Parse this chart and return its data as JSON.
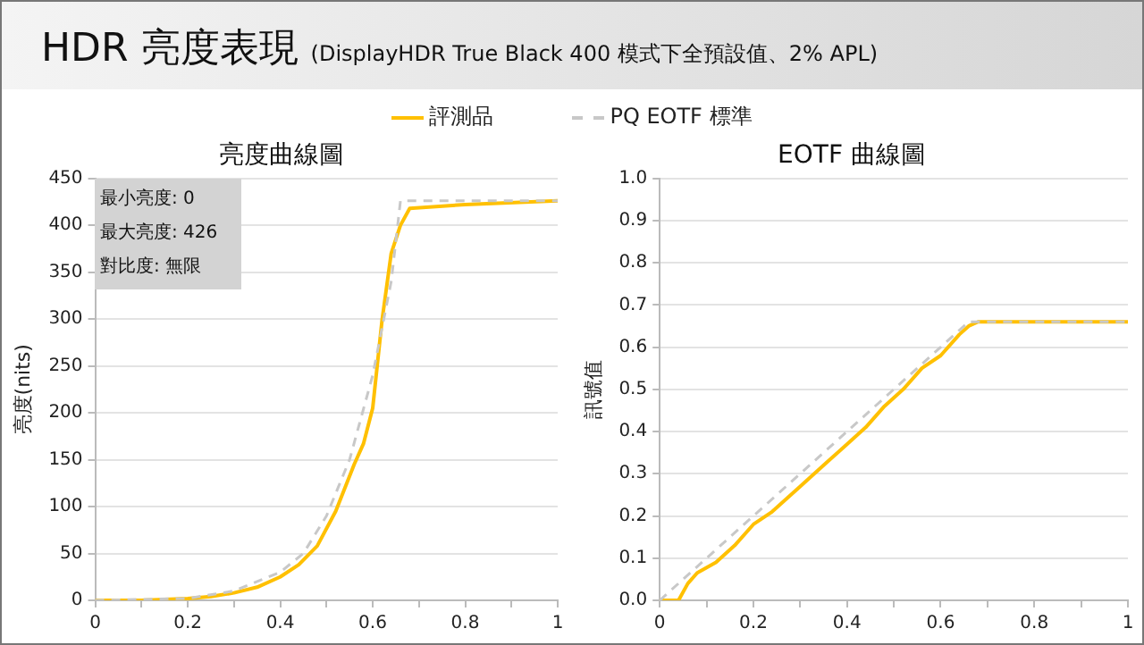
{
  "chart_data": [
    {
      "type": "line",
      "title": "亮度曲線圖",
      "ylabel": "亮度(nits)",
      "annotations": [
        "HDR 亮度表現",
        "(DisplayHDR True Black 400 模式下全預設值、2% APL)",
        "最小亮度: 0",
        "最大亮度: 426",
        "對比度: 無限"
      ],
      "series": [
        {
          "name": "評測品",
          "color": "#ffc000",
          "line_style": "solid",
          "x": [
            0,
            0.1,
            0.2,
            0.25,
            0.3,
            0.35,
            0.4,
            0.44,
            0.48,
            0.52,
            0.56,
            0.58,
            0.6,
            0.62,
            0.64,
            0.66,
            0.68,
            0.8,
            1
          ],
          "values": [
            0,
            0,
            2,
            4,
            8,
            14,
            25,
            38,
            58,
            95,
            145,
            167,
            205,
            298,
            370,
            400,
            418,
            422,
            426
          ]
        },
        {
          "name": "PQ EOTF 標準",
          "color": "#c8c8c8",
          "line_style": "dashed",
          "x": [
            0,
            0.2,
            0.3,
            0.4,
            0.45,
            0.5,
            0.55,
            0.6,
            0.64,
            0.66,
            1
          ],
          "values": [
            0,
            2,
            10,
            30,
            50,
            90,
            150,
            240,
            340,
            426,
            426
          ]
        }
      ],
      "xlim": [
        0,
        1
      ],
      "xticks": [
        0,
        {
          "value": 0.1,
          "label": null
        },
        0.2,
        {
          "value": 0.3,
          "label": null
        },
        0.4,
        {
          "value": 0.5,
          "label": null
        },
        0.6,
        {
          "value": 0.7,
          "label": null
        },
        0.8,
        {
          "value": 0.9,
          "label": null
        },
        1
      ],
      "ylim": [
        0,
        450
      ],
      "yticks": [
        0,
        50,
        100,
        150,
        200,
        250,
        300,
        350,
        400,
        450
      ],
      "grid": "y",
      "legend": "top",
      "marker": "none"
    },
    {
      "type": "line",
      "title": "EOTF 曲線圖",
      "ylabel": "訊號值",
      "series": [
        {
          "color": "#ffc000",
          "line_style": "solid",
          "x": [
            0,
            0.04,
            0.06,
            0.08,
            0.12,
            0.16,
            0.2,
            0.24,
            0.3,
            0.36,
            0.4,
            0.44,
            0.48,
            0.52,
            0.56,
            0.6,
            0.64,
            0.66,
            0.68,
            1
          ],
          "values": [
            0,
            0,
            0.04,
            0.065,
            0.09,
            0.13,
            0.18,
            0.21,
            0.27,
            0.33,
            0.37,
            0.41,
            0.46,
            0.5,
            0.55,
            0.58,
            0.63,
            0.65,
            0.66,
            0.66
          ]
        },
        {
          "color": "#c8c8c8",
          "line_style": "dashed",
          "x": [
            0,
            0.66,
            1
          ],
          "values": [
            0,
            0.66,
            0.66
          ]
        }
      ],
      "xlim": [
        0,
        1
      ],
      "xticks": [
        0,
        {
          "value": 0.1,
          "label": null
        },
        0.2,
        {
          "value": 0.3,
          "label": null
        },
        0.4,
        {
          "value": 0.5,
          "label": null
        },
        0.6,
        {
          "value": 0.7,
          "label": null
        },
        0.8,
        {
          "value": 0.9,
          "label": null
        },
        1
      ],
      "ylim": [
        0,
        1
      ],
      "yticks": [
        {
          "value": 0,
          "label": "0.0"
        },
        0.1,
        0.2,
        0.3,
        0.4,
        0.5,
        0.6,
        0.7,
        0.8,
        0.9,
        {
          "value": 1,
          "label": "1.0"
        }
      ],
      "grid": "y",
      "marker": "none"
    }
  ]
}
